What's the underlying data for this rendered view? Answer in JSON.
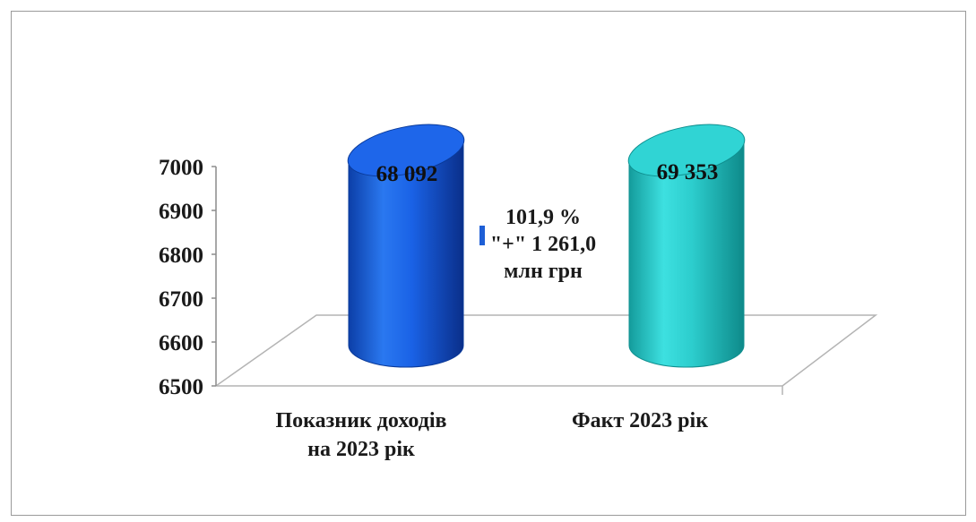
{
  "chart_data": {
    "type": "bar",
    "style": "3d-cylinder",
    "categories": [
      "Показник доходів на 2023 рік",
      "Факт 2023 рік"
    ],
    "category_lines": [
      [
        "Показник доходів",
        "на 2023 рік"
      ],
      [
        "Факт 2023 рік"
      ]
    ],
    "values": [
      68092,
      69353
    ],
    "data_labels": [
      "68 092",
      "69 353"
    ],
    "bar_colors": [
      "#1a62e6",
      "#2ccdcd"
    ],
    "y_ticks": [
      "7000",
      "6900",
      "6800",
      "6700",
      "6600",
      "6500"
    ],
    "grid": false,
    "annotation": [
      "101,9 %",
      "\"+\" 1 261,0",
      "млн грн"
    ]
  }
}
